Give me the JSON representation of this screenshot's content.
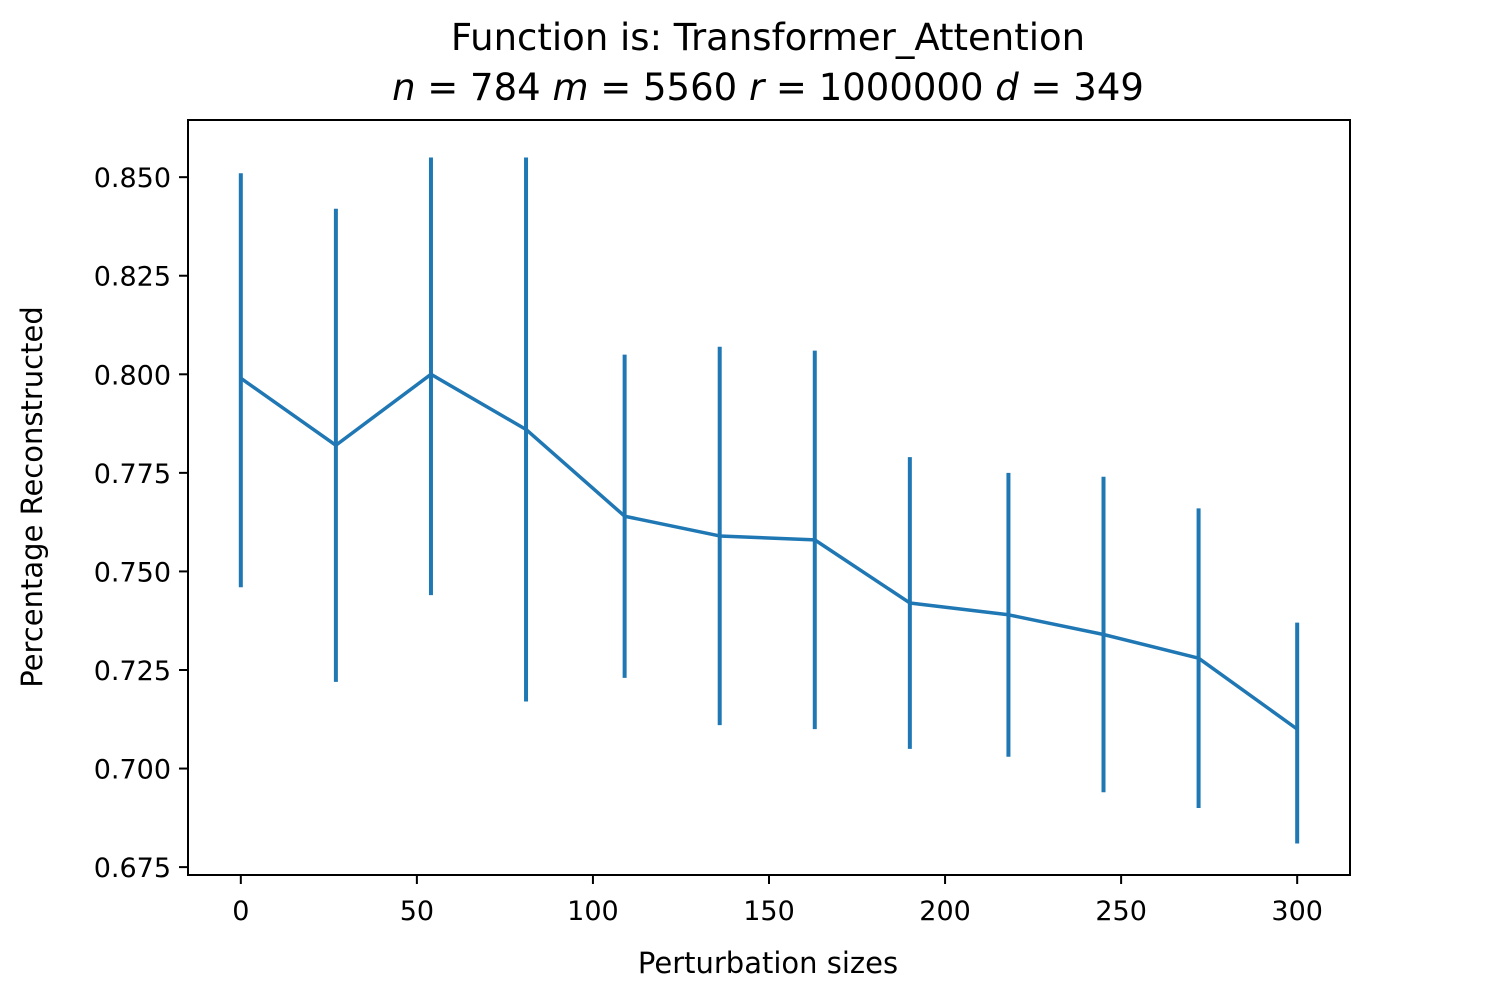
{
  "chart_data": {
    "type": "line",
    "title": "Function is: Transformer_Attention",
    "subtitle": {
      "n": "784",
      "m": "5560",
      "r": "1000000",
      "d": "349"
    },
    "xlabel": "Perturbation sizes",
    "ylabel": "Percentage Reconstructed",
    "xlim": [
      -15,
      315
    ],
    "ylim": [
      0.673,
      0.8645
    ],
    "xticks": [
      0,
      50,
      100,
      150,
      200,
      250,
      300
    ],
    "xtick_labels": [
      "0",
      "50",
      "100",
      "150",
      "200",
      "250",
      "300"
    ],
    "yticks": [
      0.675,
      0.7,
      0.725,
      0.75,
      0.775,
      0.8,
      0.825,
      0.85
    ],
    "ytick_labels": [
      "0.675",
      "0.700",
      "0.725",
      "0.750",
      "0.775",
      "0.800",
      "0.825",
      "0.850"
    ],
    "grid": false,
    "series_color": "#1f77b4",
    "series": [
      {
        "x": [
          0,
          27,
          54,
          81,
          109,
          136,
          163,
          190,
          218,
          245,
          272,
          300
        ],
        "y": [
          0.799,
          0.782,
          0.8,
          0.786,
          0.764,
          0.759,
          0.758,
          0.742,
          0.739,
          0.734,
          0.728,
          0.71
        ],
        "err_low": [
          0.746,
          0.722,
          0.744,
          0.717,
          0.723,
          0.711,
          0.71,
          0.705,
          0.703,
          0.694,
          0.69,
          0.681
        ],
        "err_high": [
          0.851,
          0.842,
          0.855,
          0.855,
          0.805,
          0.807,
          0.806,
          0.779,
          0.775,
          0.774,
          0.766,
          0.737
        ]
      }
    ]
  }
}
